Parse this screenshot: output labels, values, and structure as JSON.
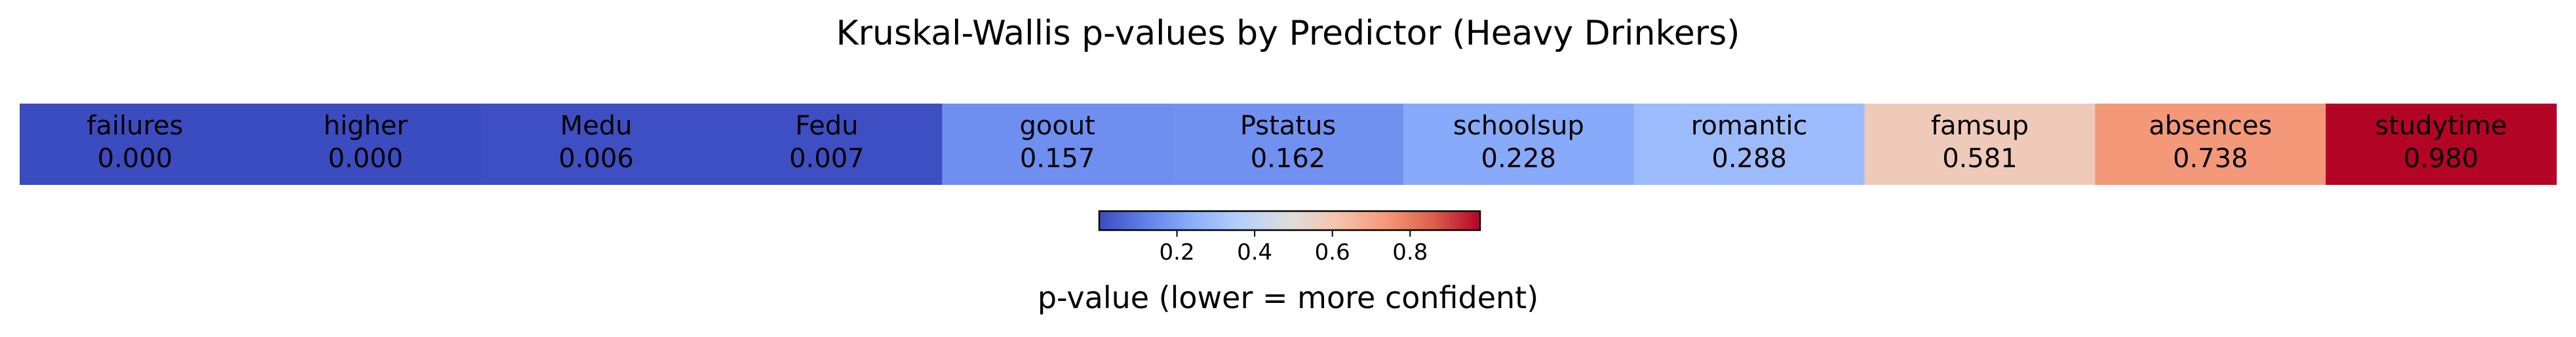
{
  "chart_data": {
    "type": "heatmap",
    "title": "Kruskal-Wallis p-values by Predictor (Heavy Drinkers)",
    "categories": [
      "failures",
      "higher",
      "Medu",
      "Fedu",
      "goout",
      "Pstatus",
      "schoolsup",
      "romantic",
      "famsup",
      "absences",
      "studytime"
    ],
    "values": [
      0.0,
      0.0,
      0.006,
      0.007,
      0.157,
      0.162,
      0.228,
      0.288,
      0.581,
      0.738,
      0.98
    ],
    "value_labels": [
      "0.000",
      "0.000",
      "0.006",
      "0.007",
      "0.157",
      "0.162",
      "0.228",
      "0.288",
      "0.581",
      "0.738",
      "0.980"
    ],
    "colormap": "coolwarm",
    "vmin": 0.0,
    "vmax": 0.98,
    "colorbar": {
      "label": "p-value (lower = more confident)",
      "ticks": [
        0.2,
        0.4,
        0.6,
        0.8
      ],
      "tick_labels": [
        "0.2",
        "0.4",
        "0.6",
        "0.8"
      ],
      "placement": "bottom"
    },
    "grid": false
  }
}
